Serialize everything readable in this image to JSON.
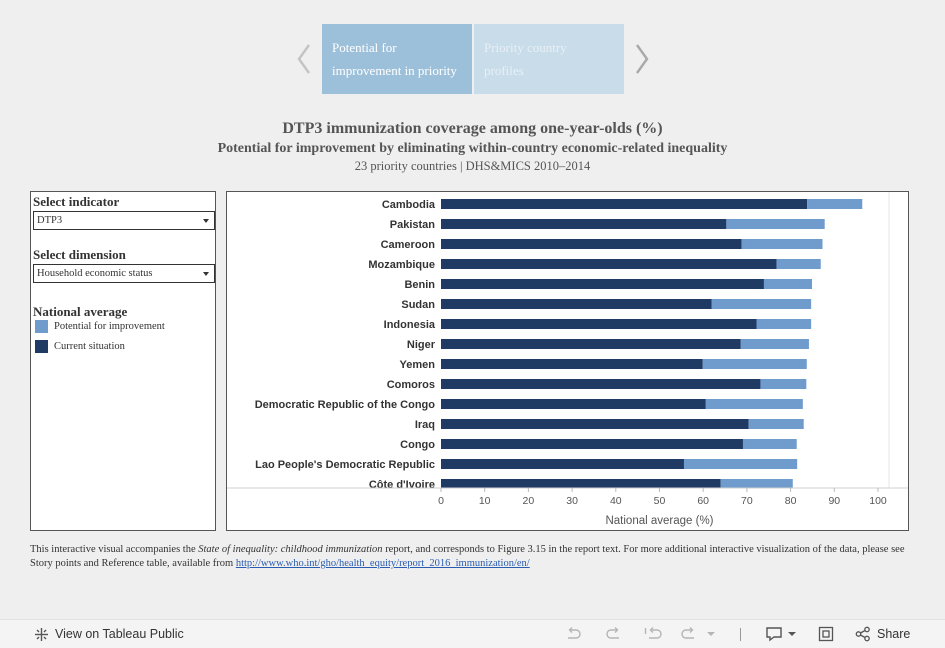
{
  "story": {
    "tabs": [
      {
        "label_line1": "Potential for",
        "label_line2": "improvement in priority"
      },
      {
        "label_line1": "Priority country",
        "label_line2": "profiles"
      }
    ]
  },
  "header": {
    "title": "DTP3 immunization coverage among one-year-olds (%)",
    "subtitle": "Potential for improvement by eliminating within-country economic-related inequality",
    "subsubtitle": "23 priority countries | DHS&MICS 2010–2014"
  },
  "panel": {
    "indicator_label": "Select indicator",
    "indicator_value": "DTP3",
    "dimension_label": "Select dimension",
    "dimension_value": "Household economic status",
    "legend_title": "National average",
    "legend": [
      {
        "label": "Potential for improvement",
        "color": "#6f9ccc"
      },
      {
        "label": "Current situation",
        "color": "#1f3a63"
      }
    ]
  },
  "chart_data": {
    "type": "bar",
    "orientation": "horizontal",
    "stacked": true,
    "categories": [
      "Cambodia",
      "Pakistan",
      "Cameroon",
      "Mozambique",
      "Benin",
      "Sudan",
      "Indonesia",
      "Niger",
      "Yemen",
      "Comoros",
      "Democratic Republic of the Congo",
      "Iraq",
      "Congo",
      "Lao People's Democratic Republic",
      "Côte d'Ivoire"
    ],
    "series": [
      {
        "name": "Current situation",
        "color": "#1f3a63",
        "values": [
          83.8,
          65.3,
          68.8,
          76.8,
          73.9,
          61.9,
          72.2,
          68.6,
          59.9,
          73.1,
          60.6,
          70.4,
          69.1,
          55.6,
          64.0
        ]
      },
      {
        "name": "Potential for improvement",
        "color": "#6f9ccc",
        "values": [
          12.6,
          22.5,
          18.5,
          10.1,
          11.0,
          22.8,
          12.5,
          15.6,
          23.8,
          10.5,
          22.2,
          12.6,
          12.3,
          25.9,
          16.5
        ]
      }
    ],
    "xlabel": "National average (%)",
    "xlim": [
      0,
      100
    ],
    "xticks": [
      0,
      10,
      20,
      30,
      40,
      50,
      60,
      70,
      80,
      90,
      100
    ]
  },
  "footnote": {
    "prefix": "This interactive visual accompanies the ",
    "report_title": "State of inequality: childhood immunization",
    "middle": " report, and corresponds to Figure 3.15 in the report text. For more additional interactive visualization of the data, please see Story points and Reference table, available from ",
    "link": "http://www.who.int/gho/health_equity/report_2016_immunization/en/"
  },
  "toolbar": {
    "view_label": "View on Tableau Public",
    "share_label": "Share"
  }
}
